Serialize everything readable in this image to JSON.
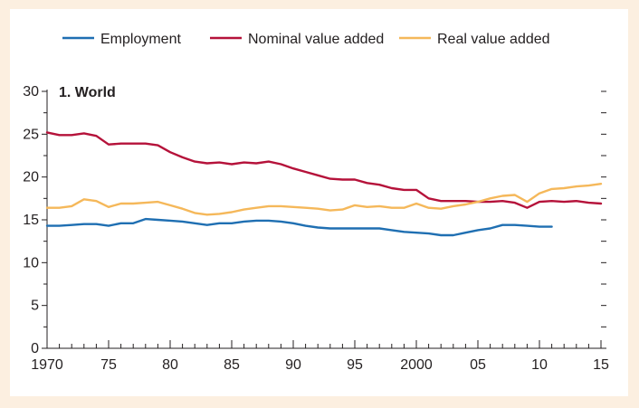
{
  "chart_data": {
    "type": "line",
    "title": "1. World",
    "xlabel": "",
    "ylabel": "",
    "xlim": [
      1970,
      2015
    ],
    "ylim": [
      0,
      30
    ],
    "x_ticks": [
      1970,
      1975,
      1980,
      1985,
      1990,
      1995,
      2000,
      2005,
      2010,
      2015
    ],
    "x_tick_labels": [
      "1970",
      "75",
      "80",
      "85",
      "90",
      "95",
      "2000",
      "05",
      "10",
      "15"
    ],
    "y_ticks": [
      0,
      5,
      10,
      15,
      20,
      25,
      30
    ],
    "y_tick_labels": [
      "0",
      "5",
      "10",
      "15",
      "20",
      "25",
      "30"
    ],
    "grid": false,
    "legend_position": "top",
    "series": [
      {
        "name": "Employment",
        "color": "#1f6fb2",
        "x": [
          1970,
          1971,
          1972,
          1973,
          1974,
          1975,
          1976,
          1977,
          1978,
          1979,
          1980,
          1981,
          1982,
          1983,
          1984,
          1985,
          1986,
          1987,
          1988,
          1989,
          1990,
          1991,
          1992,
          1993,
          1994,
          1995,
          1996,
          1997,
          1998,
          1999,
          2000,
          2001,
          2002,
          2003,
          2004,
          2005,
          2006,
          2007,
          2008,
          2009,
          2010,
          2011
        ],
        "values": [
          14.3,
          14.3,
          14.4,
          14.5,
          14.5,
          14.3,
          14.6,
          14.6,
          15.1,
          15.0,
          14.9,
          14.8,
          14.6,
          14.4,
          14.6,
          14.6,
          14.8,
          14.9,
          14.9,
          14.8,
          14.6,
          14.3,
          14.1,
          14.0,
          14.0,
          14.0,
          14.0,
          14.0,
          13.8,
          13.6,
          13.5,
          13.4,
          13.2,
          13.2,
          13.5,
          13.8,
          14.0,
          14.4,
          14.4,
          14.3,
          14.2,
          14.2
        ]
      },
      {
        "name": "Nominal value added",
        "color": "#b5123a",
        "x": [
          1970,
          1971,
          1972,
          1973,
          1974,
          1975,
          1976,
          1977,
          1978,
          1979,
          1980,
          1981,
          1982,
          1983,
          1984,
          1985,
          1986,
          1987,
          1988,
          1989,
          1990,
          1991,
          1992,
          1993,
          1994,
          1995,
          1996,
          1997,
          1998,
          1999,
          2000,
          2001,
          2002,
          2003,
          2004,
          2005,
          2006,
          2007,
          2008,
          2009,
          2010,
          2011,
          2012,
          2013,
          2014,
          2015
        ],
        "values": [
          25.2,
          24.9,
          24.9,
          25.1,
          24.8,
          23.8,
          23.9,
          23.9,
          23.9,
          23.7,
          22.9,
          22.3,
          21.8,
          21.6,
          21.7,
          21.5,
          21.7,
          21.6,
          21.8,
          21.5,
          21.0,
          20.6,
          20.2,
          19.8,
          19.7,
          19.7,
          19.3,
          19.1,
          18.7,
          18.5,
          18.5,
          17.5,
          17.2,
          17.2,
          17.2,
          17.1,
          17.1,
          17.2,
          17.0,
          16.4,
          17.1,
          17.2,
          17.1,
          17.2,
          17.0,
          16.9
        ]
      },
      {
        "name": "Real value added",
        "color": "#f5b85a",
        "x": [
          1970,
          1971,
          1972,
          1973,
          1974,
          1975,
          1976,
          1977,
          1978,
          1979,
          1980,
          1981,
          1982,
          1983,
          1984,
          1985,
          1986,
          1987,
          1988,
          1989,
          1990,
          1991,
          1992,
          1993,
          1994,
          1995,
          1996,
          1997,
          1998,
          1999,
          2000,
          2001,
          2002,
          2003,
          2004,
          2005,
          2006,
          2007,
          2008,
          2009,
          2010,
          2011,
          2012,
          2013,
          2014,
          2015
        ],
        "values": [
          16.4,
          16.4,
          16.6,
          17.4,
          17.2,
          16.5,
          16.9,
          16.9,
          17.0,
          17.1,
          16.7,
          16.3,
          15.8,
          15.6,
          15.7,
          15.9,
          16.2,
          16.4,
          16.6,
          16.6,
          16.5,
          16.4,
          16.3,
          16.1,
          16.2,
          16.7,
          16.5,
          16.6,
          16.4,
          16.4,
          16.9,
          16.4,
          16.3,
          16.6,
          16.8,
          17.1,
          17.5,
          17.8,
          17.9,
          17.1,
          18.1,
          18.6,
          18.7,
          18.9,
          19.0,
          19.2
        ]
      }
    ]
  }
}
